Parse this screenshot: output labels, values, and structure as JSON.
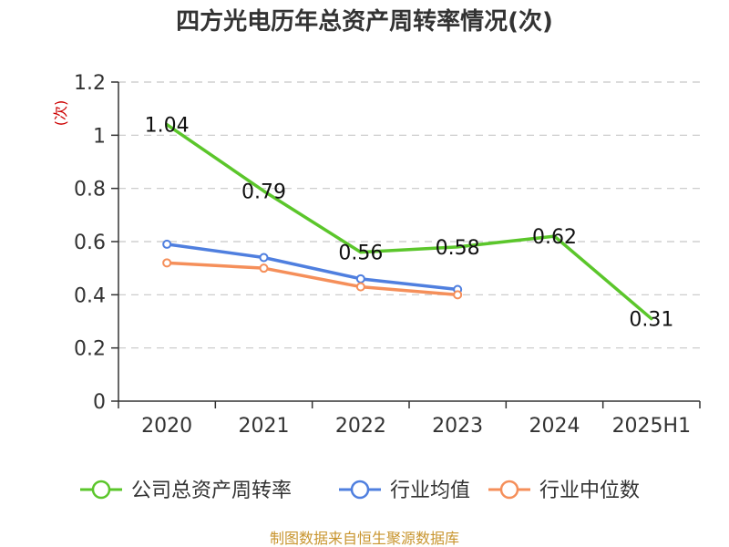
{
  "chart_data": {
    "type": "line",
    "title": "四方光电历年总资产周转率情况(次)",
    "ylabel": "(次)",
    "xlabel": "",
    "categories": [
      "2020",
      "2021",
      "2022",
      "2023",
      "2024",
      "2025H1"
    ],
    "ylim": [
      0,
      1.2
    ],
    "yticks": [
      0,
      0.2,
      0.4,
      0.6,
      0.8,
      1,
      1.2
    ],
    "ytick_labels": [
      "0",
      "0.2",
      "0.4",
      "0.6",
      "0.8",
      "1",
      "1.2"
    ],
    "grid": true,
    "legend_position": "bottom",
    "series": [
      {
        "name": "公司总资产周转率",
        "color": "#5bc62b",
        "values": [
          1.04,
          0.79,
          0.56,
          0.58,
          0.62,
          0.31
        ],
        "labels": [
          "1.04",
          "0.79",
          "0.56",
          "0.58",
          "0.62",
          "0.31"
        ],
        "show_labels": true,
        "markers": false
      },
      {
        "name": "行业均值",
        "color": "#4f7fdf",
        "values": [
          0.59,
          0.54,
          0.46,
          0.42,
          null,
          null
        ],
        "show_labels": false,
        "markers": true
      },
      {
        "name": "行业中位数",
        "color": "#f58f5a",
        "values": [
          0.52,
          0.5,
          0.43,
          0.4,
          null,
          null
        ],
        "show_labels": false,
        "markers": true
      }
    ],
    "source": "制图数据来自恒生聚源数据库"
  }
}
